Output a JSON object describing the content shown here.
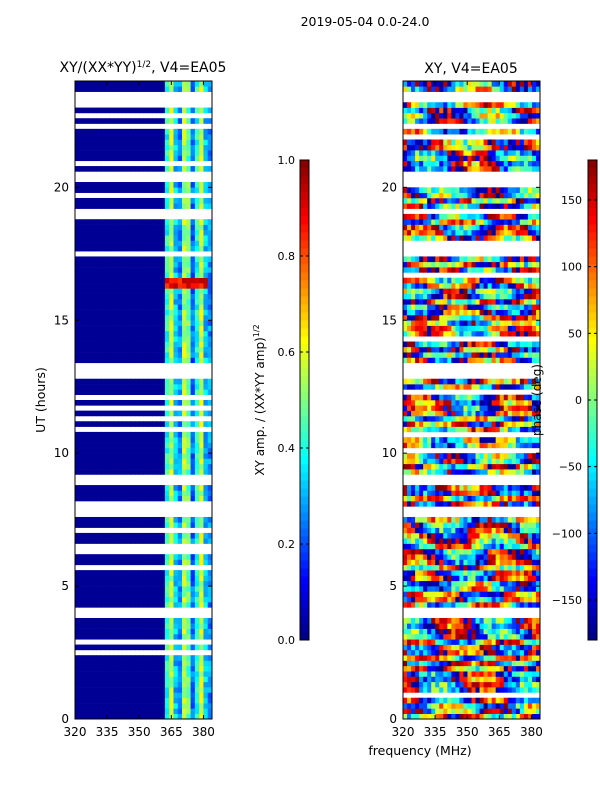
{
  "figure_title": "2019-05-04 0.0-24.0",
  "shared_xlabel": "frequency (MHz)",
  "chart_data": [
    {
      "type": "heatmap",
      "title": "XY/(XX*YY)",
      "title_exponent": "1/2",
      "title_suffix": ", V4=EA05",
      "xlabel": "",
      "ylabel": "UT (hours)",
      "xlim": [
        320,
        384
      ],
      "ylim": [
        0,
        24
      ],
      "x_ticks": [
        320,
        335,
        350,
        365,
        380
      ],
      "y_ticks": [
        0,
        5,
        10,
        15,
        20
      ],
      "colorbar": {
        "label": "XY amp. / (XX*YY amp)",
        "label_exponent": "1/2",
        "range": [
          0.0,
          1.0
        ],
        "ticks": [
          "0.0",
          "0.2",
          "0.4",
          "0.6",
          "0.8",
          "1.0"
        ],
        "tick_values": [
          0.0,
          0.2,
          0.4,
          0.6,
          0.8,
          1.0
        ],
        "colormap": "jet"
      },
      "flagged_hours": [
        [
          1.95,
          2.05
        ],
        [
          3.9,
          4.1
        ],
        [
          7.6,
          7.9
        ],
        [
          8.9,
          9.1
        ],
        [
          12.8,
          13.3
        ],
        [
          17.5,
          17.7
        ],
        [
          19.0,
          19.15
        ],
        [
          20.3,
          20.5
        ],
        [
          22.1,
          22.3
        ],
        [
          23.3,
          23.6
        ]
      ],
      "high_value_band": {
        "hours": [
          16.2,
          16.5
        ],
        "freq_mhz": [
          363,
          381
        ],
        "value": 0.95
      },
      "active_freq_mhz": [
        363,
        384
      ],
      "background_value": 0.02
    },
    {
      "type": "heatmap",
      "title": "XY, V4=EA05",
      "xlabel": "",
      "ylabel": "",
      "xlim": [
        320,
        384
      ],
      "ylim": [
        0,
        24
      ],
      "x_ticks": [
        320,
        335,
        350,
        365,
        380
      ],
      "y_ticks": [
        0,
        5,
        10,
        15,
        20
      ],
      "colorbar": {
        "label": "phase (deg)",
        "range": [
          -180,
          180
        ],
        "ticks": [
          "150",
          "100",
          "50",
          "0",
          "−50",
          "−100",
          "−150"
        ],
        "tick_values": [
          150,
          100,
          50,
          0,
          -50,
          -100,
          -150
        ],
        "colormap": "jet"
      },
      "flagged_hours": [
        [
          1.95,
          2.05
        ],
        [
          3.9,
          4.1
        ],
        [
          7.6,
          7.9
        ],
        [
          8.9,
          9.1
        ],
        [
          12.8,
          13.3
        ],
        [
          17.5,
          17.7
        ],
        [
          19.0,
          19.15
        ],
        [
          20.3,
          20.5
        ],
        [
          22.1,
          22.3
        ],
        [
          23.3,
          23.6
        ]
      ],
      "value_range_deg": [
        -180,
        180
      ]
    }
  ]
}
